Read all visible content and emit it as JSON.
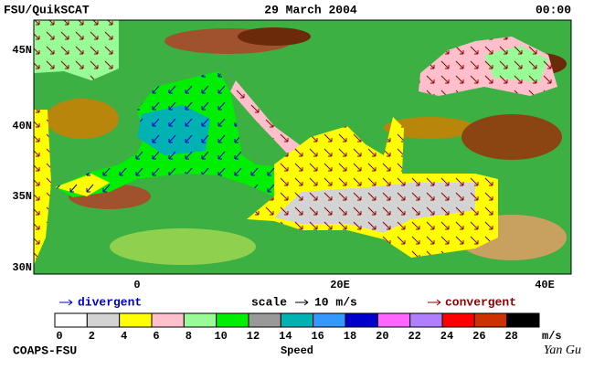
{
  "header": {
    "left": "FSU/QuikSCAT",
    "center": "29 March 2004",
    "right": "00:00"
  },
  "map": {
    "lat_labels": [
      "45N",
      "40N",
      "35N",
      "30N"
    ],
    "lon_labels": [
      "0",
      "20E",
      "40E"
    ]
  },
  "legend": {
    "divergent": "divergent",
    "scale": "scale",
    "scale_value": "10 m/s",
    "convergent": "convergent"
  },
  "colorbar": {
    "labels": [
      0,
      2,
      4,
      6,
      8,
      10,
      12,
      14,
      16,
      18,
      20,
      22,
      24,
      26,
      28
    ],
    "unit": "m/s",
    "title": "Speed",
    "colors": [
      "#ffffff",
      "#d3d3d3",
      "#ffff00",
      "#ffc0cb",
      "#98fb98",
      "#00ee00",
      "#999999",
      "#00b2b2",
      "#3399ff",
      "#0000cc",
      "#ff66ff",
      "#b07fff",
      "#ff0000",
      "#cc3300",
      "#000000"
    ]
  },
  "footer": {
    "left": "COAPS-FSU",
    "signature": "Yan Gu"
  }
}
